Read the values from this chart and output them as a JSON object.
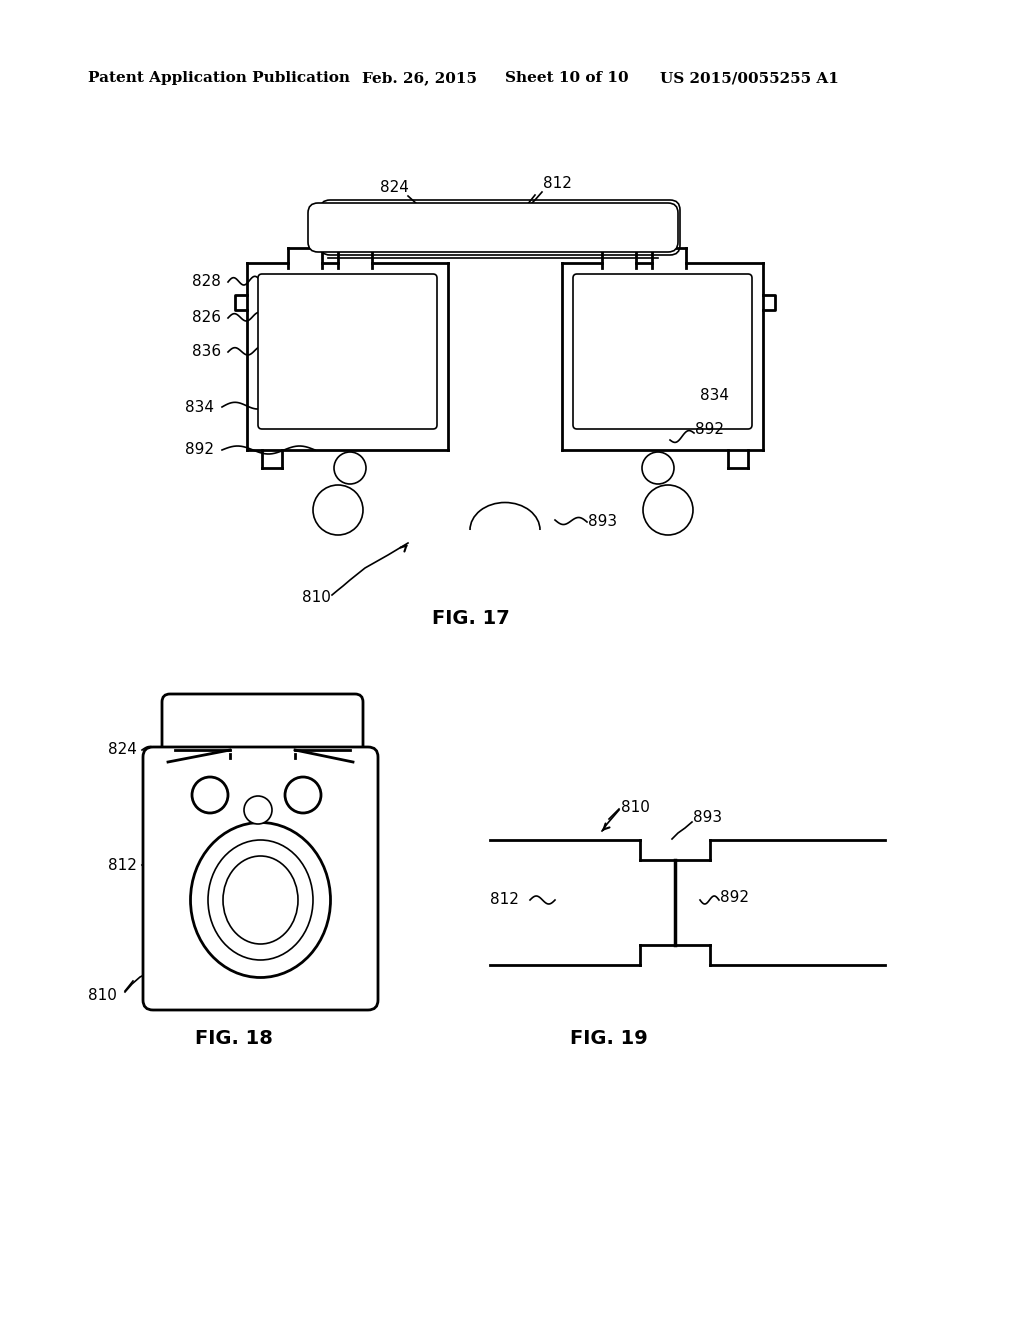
{
  "background_color": "#ffffff",
  "header_text": "Patent Application Publication",
  "header_date": "Feb. 26, 2015",
  "header_sheet": "Sheet 10 of 10",
  "header_patent": "US 2015/0055255 A1",
  "fig17_label": "FIG. 17",
  "fig18_label": "FIG. 18",
  "fig19_label": "FIG. 19",
  "line_color": "#000000",
  "text_color": "#000000",
  "font_size_header": 11,
  "font_size_ref": 11
}
